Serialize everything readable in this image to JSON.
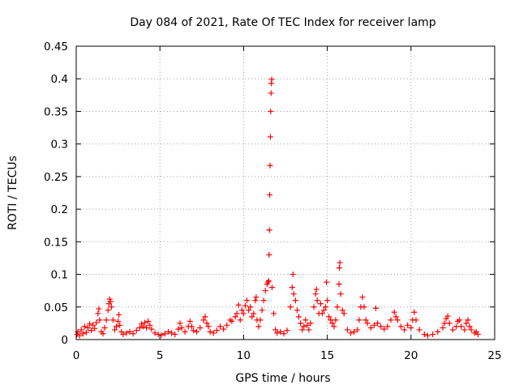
{
  "chart_data": {
    "type": "scatter",
    "title": "Day 084 of 2021, Rate Of TEC Index for receiver lamp",
    "xlabel": "GPS time / hours",
    "ylabel": "ROTI / TECUs",
    "xlim": [
      0,
      25
    ],
    "ylim": [
      0,
      0.45
    ],
    "x_ticks": [
      "0",
      "5",
      "10",
      "15",
      "20",
      "25"
    ],
    "y_ticks": [
      "0",
      "0.05",
      "0.1",
      "0.15",
      "0.2",
      "0.25",
      "0.3",
      "0.35",
      "0.4",
      "0.45"
    ],
    "grid": true,
    "marker": "+",
    "color": "#ff0000",
    "series": [
      {
        "points": [
          [
            0.05,
            0.008
          ],
          [
            0.1,
            0.012
          ],
          [
            0.2,
            0.006
          ],
          [
            0.3,
            0.015
          ],
          [
            0.4,
            0.009
          ],
          [
            0.5,
            0.02
          ],
          [
            0.6,
            0.011
          ],
          [
            0.7,
            0.018
          ],
          [
            0.8,
            0.024
          ],
          [
            0.9,
            0.014
          ],
          [
            1.0,
            0.022
          ],
          [
            1.1,
            0.017
          ],
          [
            1.2,
            0.026
          ],
          [
            1.3,
            0.04
          ],
          [
            1.35,
            0.047
          ],
          [
            1.4,
            0.03
          ],
          [
            1.5,
            0.012
          ],
          [
            1.6,
            0.009
          ],
          [
            1.7,
            0.018
          ],
          [
            1.8,
            0.03
          ],
          [
            1.9,
            0.045
          ],
          [
            1.95,
            0.055
          ],
          [
            2.0,
            0.062
          ],
          [
            2.05,
            0.058
          ],
          [
            2.1,
            0.05
          ],
          [
            2.2,
            0.03
          ],
          [
            2.3,
            0.015
          ],
          [
            2.4,
            0.02
          ],
          [
            2.5,
            0.028
          ],
          [
            2.55,
            0.038
          ],
          [
            2.6,
            0.022
          ],
          [
            2.7,
            0.012
          ],
          [
            2.8,
            0.008
          ],
          [
            3.0,
            0.01
          ],
          [
            3.2,
            0.012
          ],
          [
            3.4,
            0.009
          ],
          [
            3.6,
            0.014
          ],
          [
            3.8,
            0.018
          ],
          [
            3.9,
            0.024
          ],
          [
            4.0,
            0.02
          ],
          [
            4.1,
            0.026
          ],
          [
            4.2,
            0.018
          ],
          [
            4.3,
            0.028
          ],
          [
            4.4,
            0.022
          ],
          [
            4.5,
            0.016
          ],
          [
            4.7,
            0.01
          ],
          [
            4.9,
            0.008
          ],
          [
            5.1,
            0.007
          ],
          [
            5.3,
            0.009
          ],
          [
            5.5,
            0.012
          ],
          [
            5.7,
            0.01
          ],
          [
            5.9,
            0.008
          ],
          [
            6.1,
            0.016
          ],
          [
            6.2,
            0.025
          ],
          [
            6.3,
            0.018
          ],
          [
            6.5,
            0.012
          ],
          [
            6.7,
            0.02
          ],
          [
            6.8,
            0.028
          ],
          [
            6.9,
            0.02
          ],
          [
            7.0,
            0.014
          ],
          [
            7.2,
            0.012
          ],
          [
            7.4,
            0.018
          ],
          [
            7.6,
            0.03
          ],
          [
            7.7,
            0.035
          ],
          [
            7.8,
            0.025
          ],
          [
            7.9,
            0.02
          ],
          [
            8.0,
            0.012
          ],
          [
            8.2,
            0.01
          ],
          [
            8.4,
            0.014
          ],
          [
            8.6,
            0.02
          ],
          [
            8.8,
            0.016
          ],
          [
            9.0,
            0.022
          ],
          [
            9.2,
            0.03
          ],
          [
            9.3,
            0.028
          ],
          [
            9.5,
            0.035
          ],
          [
            9.6,
            0.04
          ],
          [
            9.7,
            0.053
          ],
          [
            9.8,
            0.03
          ],
          [
            9.9,
            0.045
          ],
          [
            10.0,
            0.04
          ],
          [
            10.1,
            0.052
          ],
          [
            10.2,
            0.06
          ],
          [
            10.3,
            0.045
          ],
          [
            10.4,
            0.05
          ],
          [
            10.5,
            0.035
          ],
          [
            10.6,
            0.04
          ],
          [
            10.7,
            0.06
          ],
          [
            10.75,
            0.065
          ],
          [
            10.8,
            0.03
          ],
          [
            10.9,
            0.02
          ],
          [
            11.0,
            0.03
          ],
          [
            11.1,
            0.045
          ],
          [
            11.2,
            0.06
          ],
          [
            11.3,
            0.075
          ],
          [
            11.4,
            0.085
          ],
          [
            11.45,
            0.088
          ],
          [
            11.5,
            0.09
          ],
          [
            11.52,
            0.13
          ],
          [
            11.54,
            0.168
          ],
          [
            11.56,
            0.222
          ],
          [
            11.58,
            0.267
          ],
          [
            11.6,
            0.311
          ],
          [
            11.62,
            0.35
          ],
          [
            11.64,
            0.378
          ],
          [
            11.66,
            0.393
          ],
          [
            11.68,
            0.399
          ],
          [
            11.7,
            0.08
          ],
          [
            11.8,
            0.04
          ],
          [
            11.9,
            0.015
          ],
          [
            12.0,
            0.01
          ],
          [
            12.2,
            0.012
          ],
          [
            12.4,
            0.009
          ],
          [
            12.6,
            0.014
          ],
          [
            12.8,
            0.05
          ],
          [
            12.9,
            0.08
          ],
          [
            12.95,
            0.1
          ],
          [
            13.0,
            0.07
          ],
          [
            13.1,
            0.06
          ],
          [
            13.2,
            0.045
          ],
          [
            13.3,
            0.035
          ],
          [
            13.4,
            0.025
          ],
          [
            13.5,
            0.015
          ],
          [
            13.6,
            0.02
          ],
          [
            13.7,
            0.03
          ],
          [
            13.8,
            0.022
          ],
          [
            13.9,
            0.015
          ],
          [
            14.0,
            0.025
          ],
          [
            14.2,
            0.05
          ],
          [
            14.3,
            0.07
          ],
          [
            14.35,
            0.077
          ],
          [
            14.4,
            0.06
          ],
          [
            14.5,
            0.04
          ],
          [
            14.6,
            0.055
          ],
          [
            14.7,
            0.04
          ],
          [
            14.8,
            0.045
          ],
          [
            14.9,
            0.05
          ],
          [
            14.95,
            0.088
          ],
          [
            15.0,
            0.06
          ],
          [
            15.1,
            0.035
          ],
          [
            15.2,
            0.03
          ],
          [
            15.3,
            0.025
          ],
          [
            15.4,
            0.02
          ],
          [
            15.5,
            0.03
          ],
          [
            15.6,
            0.05
          ],
          [
            15.7,
            0.085
          ],
          [
            15.72,
            0.11
          ],
          [
            15.75,
            0.118
          ],
          [
            15.8,
            0.07
          ],
          [
            15.9,
            0.045
          ],
          [
            16.0,
            0.04
          ],
          [
            16.2,
            0.015
          ],
          [
            16.4,
            0.01
          ],
          [
            16.6,
            0.012
          ],
          [
            16.8,
            0.015
          ],
          [
            16.9,
            0.03
          ],
          [
            17.0,
            0.05
          ],
          [
            17.1,
            0.065
          ],
          [
            17.2,
            0.05
          ],
          [
            17.3,
            0.03
          ],
          [
            17.4,
            0.025
          ],
          [
            17.6,
            0.018
          ],
          [
            17.8,
            0.022
          ],
          [
            17.9,
            0.048
          ],
          [
            18.0,
            0.025
          ],
          [
            18.2,
            0.02
          ],
          [
            18.4,
            0.016
          ],
          [
            18.6,
            0.02
          ],
          [
            18.8,
            0.03
          ],
          [
            19.0,
            0.042
          ],
          [
            19.1,
            0.035
          ],
          [
            19.2,
            0.03
          ],
          [
            19.4,
            0.02
          ],
          [
            19.6,
            0.015
          ],
          [
            19.8,
            0.022
          ],
          [
            20.0,
            0.018
          ],
          [
            20.1,
            0.03
          ],
          [
            20.2,
            0.042
          ],
          [
            20.3,
            0.03
          ],
          [
            20.5,
            0.015
          ],
          [
            20.8,
            0.008
          ],
          [
            21.0,
            0.006
          ],
          [
            21.3,
            0.008
          ],
          [
            21.6,
            0.012
          ],
          [
            21.9,
            0.018
          ],
          [
            22.0,
            0.025
          ],
          [
            22.1,
            0.032
          ],
          [
            22.2,
            0.036
          ],
          [
            22.3,
            0.025
          ],
          [
            22.5,
            0.015
          ],
          [
            22.7,
            0.02
          ],
          [
            22.8,
            0.028
          ],
          [
            22.9,
            0.03
          ],
          [
            23.0,
            0.02
          ],
          [
            23.2,
            0.015
          ],
          [
            23.3,
            0.025
          ],
          [
            23.4,
            0.03
          ],
          [
            23.5,
            0.02
          ],
          [
            23.6,
            0.015
          ],
          [
            23.8,
            0.01
          ],
          [
            23.9,
            0.012
          ],
          [
            24.0,
            0.008
          ]
        ]
      }
    ]
  }
}
